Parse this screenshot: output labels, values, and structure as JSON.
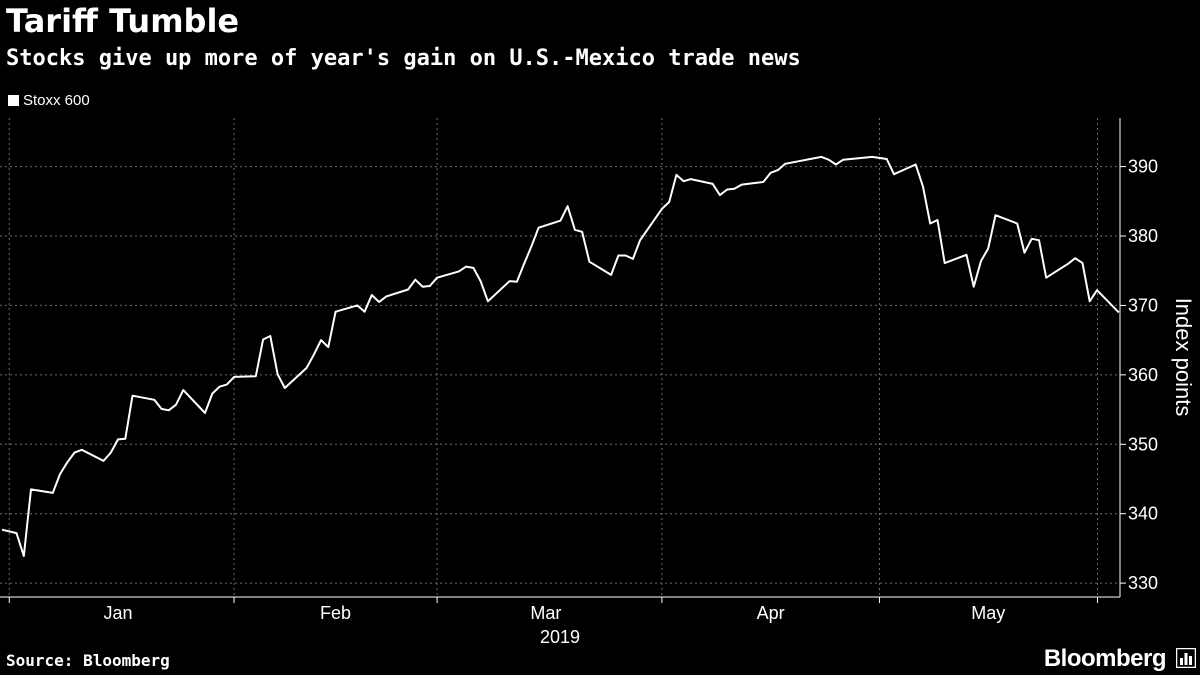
{
  "header": {
    "title": "Tariff Tumble",
    "subtitle": "Stocks give up more of year's gain on U.S.-Mexico trade news"
  },
  "footer": {
    "source": "Source: Bloomberg",
    "brand": "Bloomberg"
  },
  "colors": {
    "background": "#000000",
    "line": "#ffffff",
    "grid": "#6e6e6e"
  },
  "chart_data": {
    "type": "line",
    "title": "Tariff Tumble",
    "subtitle": "Stocks give up more of year's gain on U.S.-Mexico trade news",
    "xlabel": "2019",
    "ylabel": "Index points",
    "ylim": [
      328,
      397
    ],
    "yticks": [
      330,
      340,
      350,
      360,
      370,
      380,
      390
    ],
    "xlim": [
      "2018-12-31",
      "2019-05-31"
    ],
    "month_ticks": [
      "2019-01-01",
      "2019-02-01",
      "2019-03-01",
      "2019-04-01",
      "2019-05-01",
      "2019-06-01"
    ],
    "month_labels": [
      {
        "label": "Jan",
        "date": "2019-01-16"
      },
      {
        "label": "Feb",
        "date": "2019-02-15"
      },
      {
        "label": "Mar",
        "date": "2019-03-16"
      },
      {
        "label": "Apr",
        "date": "2019-04-16"
      },
      {
        "label": "May",
        "date": "2019-05-16"
      }
    ],
    "year_label": "2019",
    "grid": true,
    "legend_position": "top-left",
    "series": [
      {
        "name": "Stoxx 600",
        "color": "#ffffff",
        "points": [
          [
            "2018-12-31",
            337.7
          ],
          [
            "2019-01-02",
            337.2
          ],
          [
            "2019-01-03",
            333.9
          ],
          [
            "2019-01-04",
            343.5
          ],
          [
            "2019-01-07",
            343.0
          ],
          [
            "2019-01-08",
            345.7
          ],
          [
            "2019-01-09",
            347.4
          ],
          [
            "2019-01-10",
            348.8
          ],
          [
            "2019-01-11",
            349.2
          ],
          [
            "2019-01-14",
            347.6
          ],
          [
            "2019-01-15",
            348.8
          ],
          [
            "2019-01-16",
            350.7
          ],
          [
            "2019-01-17",
            350.8
          ],
          [
            "2019-01-18",
            357.0
          ],
          [
            "2019-01-21",
            356.4
          ],
          [
            "2019-01-22",
            355.1
          ],
          [
            "2019-01-23",
            354.9
          ],
          [
            "2019-01-24",
            355.7
          ],
          [
            "2019-01-25",
            357.8
          ],
          [
            "2019-01-28",
            354.5
          ],
          [
            "2019-01-29",
            357.3
          ],
          [
            "2019-01-30",
            358.3
          ],
          [
            "2019-01-31",
            358.6
          ],
          [
            "2019-02-01",
            359.7
          ],
          [
            "2019-02-04",
            359.8
          ],
          [
            "2019-02-05",
            365.1
          ],
          [
            "2019-02-06",
            365.6
          ],
          [
            "2019-02-07",
            360.1
          ],
          [
            "2019-02-08",
            358.1
          ],
          [
            "2019-02-11",
            361.0
          ],
          [
            "2019-02-12",
            362.9
          ],
          [
            "2019-02-13",
            365.0
          ],
          [
            "2019-02-14",
            364.0
          ],
          [
            "2019-02-15",
            369.1
          ],
          [
            "2019-02-18",
            370.0
          ],
          [
            "2019-02-19",
            369.1
          ],
          [
            "2019-02-20",
            371.5
          ],
          [
            "2019-02-21",
            370.5
          ],
          [
            "2019-02-22",
            371.3
          ],
          [
            "2019-02-25",
            372.3
          ],
          [
            "2019-02-26",
            373.7
          ],
          [
            "2019-02-27",
            372.7
          ],
          [
            "2019-02-28",
            372.8
          ],
          [
            "2019-03-01",
            374.0
          ],
          [
            "2019-03-04",
            374.9
          ],
          [
            "2019-03-05",
            375.6
          ],
          [
            "2019-03-06",
            375.4
          ],
          [
            "2019-03-07",
            373.5
          ],
          [
            "2019-03-08",
            370.6
          ],
          [
            "2019-03-11",
            373.5
          ],
          [
            "2019-03-12",
            373.4
          ],
          [
            "2019-03-13",
            376.0
          ],
          [
            "2019-03-14",
            378.5
          ],
          [
            "2019-03-15",
            381.2
          ],
          [
            "2019-03-18",
            382.2
          ],
          [
            "2019-03-19",
            384.3
          ],
          [
            "2019-03-20",
            380.9
          ],
          [
            "2019-03-21",
            380.6
          ],
          [
            "2019-03-22",
            376.3
          ],
          [
            "2019-03-25",
            374.4
          ],
          [
            "2019-03-26",
            377.2
          ],
          [
            "2019-03-27",
            377.2
          ],
          [
            "2019-03-28",
            376.7
          ],
          [
            "2019-03-29",
            379.4
          ],
          [
            "2019-04-01",
            383.9
          ],
          [
            "2019-04-02",
            384.9
          ],
          [
            "2019-04-03",
            388.8
          ],
          [
            "2019-04-04",
            387.9
          ],
          [
            "2019-04-05",
            388.2
          ],
          [
            "2019-04-08",
            387.5
          ],
          [
            "2019-04-09",
            385.9
          ],
          [
            "2019-04-10",
            386.7
          ],
          [
            "2019-04-11",
            386.8
          ],
          [
            "2019-04-12",
            387.4
          ],
          [
            "2019-04-15",
            387.8
          ],
          [
            "2019-04-16",
            389.1
          ],
          [
            "2019-04-17",
            389.5
          ],
          [
            "2019-04-18",
            390.4
          ],
          [
            "2019-04-23",
            391.4
          ],
          [
            "2019-04-24",
            391.0
          ],
          [
            "2019-04-25",
            390.3
          ],
          [
            "2019-04-26",
            391.0
          ],
          [
            "2019-04-29",
            391.3
          ],
          [
            "2019-04-30",
            391.4
          ],
          [
            "2019-05-02",
            391.1
          ],
          [
            "2019-05-03",
            388.9
          ],
          [
            "2019-05-06",
            390.3
          ],
          [
            "2019-05-07",
            387.1
          ],
          [
            "2019-05-08",
            381.8
          ],
          [
            "2019-05-09",
            382.3
          ],
          [
            "2019-05-10",
            376.1
          ],
          [
            "2019-05-13",
            377.3
          ],
          [
            "2019-05-14",
            372.7
          ],
          [
            "2019-05-15",
            376.4
          ],
          [
            "2019-05-16",
            378.2
          ],
          [
            "2019-05-17",
            383.0
          ],
          [
            "2019-05-20",
            381.8
          ],
          [
            "2019-05-21",
            377.6
          ],
          [
            "2019-05-22",
            379.6
          ],
          [
            "2019-05-23",
            379.4
          ],
          [
            "2019-05-24",
            374.0
          ],
          [
            "2019-05-27",
            376.0
          ],
          [
            "2019-05-28",
            376.8
          ],
          [
            "2019-05-29",
            376.1
          ],
          [
            "2019-05-30",
            370.6
          ],
          [
            "2019-05-31",
            372.2
          ],
          [
            "2019-06-03",
            369.0
          ]
        ]
      }
    ]
  }
}
